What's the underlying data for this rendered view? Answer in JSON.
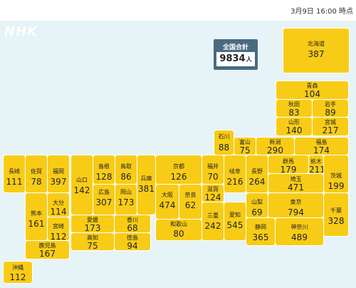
{
  "header": {
    "timestamp": "3月9日 16:00 時点"
  },
  "logo": {
    "text": "NHK"
  },
  "total": {
    "label": "全国合計",
    "value": "9834",
    "unit": "人"
  },
  "colors": {
    "tile": "#f8cc16",
    "background": "#e6f4f8",
    "total_panel": "#4a6a80"
  },
  "prefectures": [
    {
      "id": "hokkaido",
      "name": "北海道",
      "count": "387"
    },
    {
      "id": "aomori",
      "name": "青森",
      "count": "104"
    },
    {
      "id": "akita",
      "name": "秋田",
      "count": "83"
    },
    {
      "id": "iwate",
      "name": "岩手",
      "count": "89"
    },
    {
      "id": "yamagata",
      "name": "山形",
      "count": "140"
    },
    {
      "id": "miyagi",
      "name": "宮城",
      "count": "217"
    },
    {
      "id": "ishikawa",
      "name": "石川",
      "count": "88"
    },
    {
      "id": "toyama",
      "name": "富山",
      "count": "75"
    },
    {
      "id": "niigata",
      "name": "新潟",
      "count": "290"
    },
    {
      "id": "fukushima",
      "name": "福島",
      "count": "174"
    },
    {
      "id": "nagasaki",
      "name": "長崎",
      "count": "111"
    },
    {
      "id": "saga",
      "name": "佐賀",
      "count": "78"
    },
    {
      "id": "fukuoka",
      "name": "福岡",
      "count": "397"
    },
    {
      "id": "yamaguchi",
      "name": "山口",
      "count": "142"
    },
    {
      "id": "shimane",
      "name": "島根",
      "count": "128"
    },
    {
      "id": "tottori",
      "name": "鳥取",
      "count": "86"
    },
    {
      "id": "hyogo",
      "name": "兵庫",
      "count": "381"
    },
    {
      "id": "kyoto",
      "name": "京都",
      "count": "126"
    },
    {
      "id": "fukui",
      "name": "福井",
      "count": "70"
    },
    {
      "id": "gifu",
      "name": "岐阜",
      "count": "216"
    },
    {
      "id": "nagano",
      "name": "長野",
      "count": "264"
    },
    {
      "id": "gunma",
      "name": "群馬",
      "count": "179"
    },
    {
      "id": "tochigi",
      "name": "栃木",
      "count": "211"
    },
    {
      "id": "ibaraki",
      "name": "茨城",
      "count": "199"
    },
    {
      "id": "hiroshima",
      "name": "広島",
      "count": "307"
    },
    {
      "id": "okayama",
      "name": "岡山",
      "count": "173"
    },
    {
      "id": "osaka",
      "name": "大阪",
      "count": "474"
    },
    {
      "id": "nara",
      "name": "奈良",
      "count": "62"
    },
    {
      "id": "shiga",
      "name": "滋賀",
      "count": "124"
    },
    {
      "id": "saitama",
      "name": "埼玉",
      "count": "471"
    },
    {
      "id": "kumamoto",
      "name": "熊本",
      "count": "161"
    },
    {
      "id": "oita",
      "name": "大分",
      "count": "114"
    },
    {
      "id": "miyazaki",
      "name": "宮崎",
      "count": "112"
    },
    {
      "id": "ehime",
      "name": "愛媛",
      "count": "173"
    },
    {
      "id": "kagawa",
      "name": "香川",
      "count": "68"
    },
    {
      "id": "mie",
      "name": "三重",
      "count": "242"
    },
    {
      "id": "aichi",
      "name": "愛知",
      "count": "545"
    },
    {
      "id": "yamanashi",
      "name": "山梨",
      "count": "69"
    },
    {
      "id": "tokyo",
      "name": "東京",
      "count": "794"
    },
    {
      "id": "chiba",
      "name": "千葉",
      "count": "328"
    },
    {
      "id": "kochi",
      "name": "高知",
      "count": "75"
    },
    {
      "id": "tokushima",
      "name": "徳島",
      "count": "94"
    },
    {
      "id": "wakayama",
      "name": "和歌山",
      "count": "80"
    },
    {
      "id": "shizuoka",
      "name": "静岡",
      "count": "365"
    },
    {
      "id": "kanagawa",
      "name": "神奈川",
      "count": "489"
    },
    {
      "id": "kagoshima",
      "name": "鹿児島",
      "count": "167"
    },
    {
      "id": "okinawa",
      "name": "沖縄",
      "count": "112"
    }
  ]
}
